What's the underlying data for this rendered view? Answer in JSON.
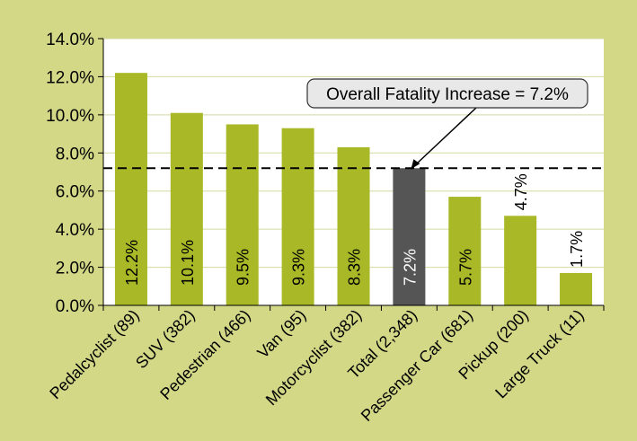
{
  "chart_data": {
    "type": "bar",
    "categories": [
      "Pedalcyclist (89)",
      "SUV (382)",
      "Pedestrian (466)",
      "Van (95)",
      "Motorcyclist (382)",
      "Total (2,348)",
      "Passenger Car (681)",
      "Pickup (200)",
      "Large Truck (11)"
    ],
    "values": [
      12.2,
      10.1,
      9.5,
      9.3,
      8.3,
      7.2,
      5.7,
      4.7,
      1.7
    ],
    "data_labels": [
      "12.2%",
      "10.1%",
      "9.5%",
      "9.3%",
      "8.3%",
      "7.2%",
      "5.7%",
      "4.7%",
      "1.7%"
    ],
    "highlight_index": 5,
    "ylim": [
      0,
      14
    ],
    "y_ticks": [
      0,
      2,
      4,
      6,
      8,
      10,
      12,
      14
    ],
    "y_tick_labels": [
      "0.0%",
      "2.0%",
      "4.0%",
      "6.0%",
      "8.0%",
      "10.0%",
      "12.0%",
      "14.0%"
    ],
    "grid": true,
    "reference_line": {
      "value": 7.2,
      "style": "dashed"
    },
    "annotation": {
      "text": "Overall Fatality Increase = 7.2%",
      "points_to_index": 5
    },
    "title": "",
    "xlabel": "",
    "ylabel": ""
  },
  "colors": {
    "background": "#d3d887",
    "plot_area": "#ffffff",
    "bar": "#a8b826",
    "highlight_bar": "#555555",
    "gridline": "#d4d9a0",
    "reference_line": "#000000",
    "callout_fill": "#e8e8e8"
  }
}
